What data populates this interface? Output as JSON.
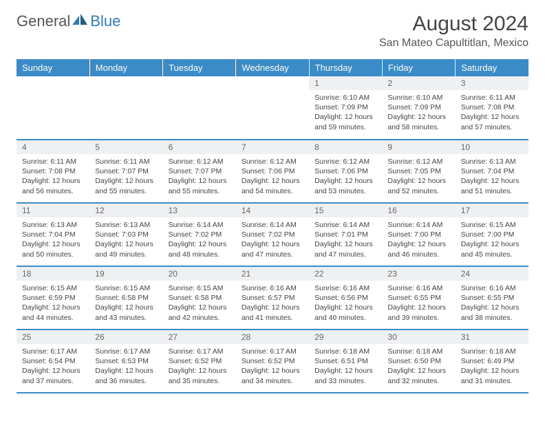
{
  "logo": {
    "text_a": "General",
    "text_b": "Blue"
  },
  "title": "August 2024",
  "location": "San Mateo Capultitlan, Mexico",
  "colors": {
    "header_bg": "#3b8bc9",
    "header_text": "#ffffff",
    "daynum_bg": "#eef0f2",
    "border": "#3b8bc9"
  },
  "days_of_week": [
    "Sunday",
    "Monday",
    "Tuesday",
    "Wednesday",
    "Thursday",
    "Friday",
    "Saturday"
  ],
  "weeks": [
    [
      {
        "empty": true
      },
      {
        "empty": true
      },
      {
        "empty": true
      },
      {
        "empty": true
      },
      {
        "n": "1",
        "sunrise": "6:10 AM",
        "sunset": "7:09 PM",
        "daylight": "12 hours and 59 minutes."
      },
      {
        "n": "2",
        "sunrise": "6:10 AM",
        "sunset": "7:09 PM",
        "daylight": "12 hours and 58 minutes."
      },
      {
        "n": "3",
        "sunrise": "6:11 AM",
        "sunset": "7:08 PM",
        "daylight": "12 hours and 57 minutes."
      }
    ],
    [
      {
        "n": "4",
        "sunrise": "6:11 AM",
        "sunset": "7:08 PM",
        "daylight": "12 hours and 56 minutes."
      },
      {
        "n": "5",
        "sunrise": "6:11 AM",
        "sunset": "7:07 PM",
        "daylight": "12 hours and 55 minutes."
      },
      {
        "n": "6",
        "sunrise": "6:12 AM",
        "sunset": "7:07 PM",
        "daylight": "12 hours and 55 minutes."
      },
      {
        "n": "7",
        "sunrise": "6:12 AM",
        "sunset": "7:06 PM",
        "daylight": "12 hours and 54 minutes."
      },
      {
        "n": "8",
        "sunrise": "6:12 AM",
        "sunset": "7:06 PM",
        "daylight": "12 hours and 53 minutes."
      },
      {
        "n": "9",
        "sunrise": "6:12 AM",
        "sunset": "7:05 PM",
        "daylight": "12 hours and 52 minutes."
      },
      {
        "n": "10",
        "sunrise": "6:13 AM",
        "sunset": "7:04 PM",
        "daylight": "12 hours and 51 minutes."
      }
    ],
    [
      {
        "n": "11",
        "sunrise": "6:13 AM",
        "sunset": "7:04 PM",
        "daylight": "12 hours and 50 minutes."
      },
      {
        "n": "12",
        "sunrise": "6:13 AM",
        "sunset": "7:03 PM",
        "daylight": "12 hours and 49 minutes."
      },
      {
        "n": "13",
        "sunrise": "6:14 AM",
        "sunset": "7:02 PM",
        "daylight": "12 hours and 48 minutes."
      },
      {
        "n": "14",
        "sunrise": "6:14 AM",
        "sunset": "7:02 PM",
        "daylight": "12 hours and 47 minutes."
      },
      {
        "n": "15",
        "sunrise": "6:14 AM",
        "sunset": "7:01 PM",
        "daylight": "12 hours and 47 minutes."
      },
      {
        "n": "16",
        "sunrise": "6:14 AM",
        "sunset": "7:00 PM",
        "daylight": "12 hours and 46 minutes."
      },
      {
        "n": "17",
        "sunrise": "6:15 AM",
        "sunset": "7:00 PM",
        "daylight": "12 hours and 45 minutes."
      }
    ],
    [
      {
        "n": "18",
        "sunrise": "6:15 AM",
        "sunset": "6:59 PM",
        "daylight": "12 hours and 44 minutes."
      },
      {
        "n": "19",
        "sunrise": "6:15 AM",
        "sunset": "6:58 PM",
        "daylight": "12 hours and 43 minutes."
      },
      {
        "n": "20",
        "sunrise": "6:15 AM",
        "sunset": "6:58 PM",
        "daylight": "12 hours and 42 minutes."
      },
      {
        "n": "21",
        "sunrise": "6:16 AM",
        "sunset": "6:57 PM",
        "daylight": "12 hours and 41 minutes."
      },
      {
        "n": "22",
        "sunrise": "6:16 AM",
        "sunset": "6:56 PM",
        "daylight": "12 hours and 40 minutes."
      },
      {
        "n": "23",
        "sunrise": "6:16 AM",
        "sunset": "6:55 PM",
        "daylight": "12 hours and 39 minutes."
      },
      {
        "n": "24",
        "sunrise": "6:16 AM",
        "sunset": "6:55 PM",
        "daylight": "12 hours and 38 minutes."
      }
    ],
    [
      {
        "n": "25",
        "sunrise": "6:17 AM",
        "sunset": "6:54 PM",
        "daylight": "12 hours and 37 minutes."
      },
      {
        "n": "26",
        "sunrise": "6:17 AM",
        "sunset": "6:53 PM",
        "daylight": "12 hours and 36 minutes."
      },
      {
        "n": "27",
        "sunrise": "6:17 AM",
        "sunset": "6:52 PM",
        "daylight": "12 hours and 35 minutes."
      },
      {
        "n": "28",
        "sunrise": "6:17 AM",
        "sunset": "6:52 PM",
        "daylight": "12 hours and 34 minutes."
      },
      {
        "n": "29",
        "sunrise": "6:18 AM",
        "sunset": "6:51 PM",
        "daylight": "12 hours and 33 minutes."
      },
      {
        "n": "30",
        "sunrise": "6:18 AM",
        "sunset": "6:50 PM",
        "daylight": "12 hours and 32 minutes."
      },
      {
        "n": "31",
        "sunrise": "6:18 AM",
        "sunset": "6:49 PM",
        "daylight": "12 hours and 31 minutes."
      }
    ]
  ],
  "labels": {
    "sunrise": "Sunrise: ",
    "sunset": "Sunset: ",
    "daylight": "Daylight: "
  }
}
